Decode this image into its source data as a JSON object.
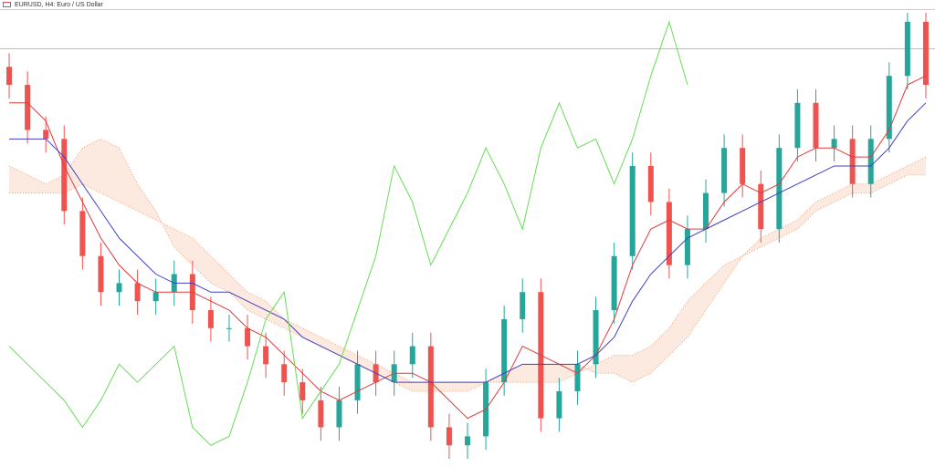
{
  "window": {
    "title": "EURUSD, H4: Euro / US Dollar"
  },
  "chart_data": {
    "type": "candlestick",
    "ylim": [
      0,
      100
    ],
    "open": [
      88,
      84,
      74,
      72,
      56,
      46,
      38,
      40,
      36,
      38,
      42,
      34,
      30,
      30,
      26,
      22,
      18,
      14,
      8,
      14,
      22,
      18,
      22,
      26,
      8,
      4,
      6,
      18,
      32,
      38,
      10,
      16,
      22,
      34,
      46,
      66,
      58,
      44,
      52,
      60,
      70,
      62,
      52,
      70,
      80,
      70,
      72,
      62,
      72,
      86,
      98
    ],
    "high": [
      91,
      87,
      77,
      75,
      59,
      49,
      43,
      43,
      41,
      45,
      45,
      37,
      33,
      33,
      29,
      25,
      21,
      17,
      17,
      25,
      25,
      25,
      29,
      29,
      11,
      9,
      21,
      35,
      41,
      41,
      19,
      25,
      37,
      49,
      69,
      69,
      61,
      55,
      63,
      73,
      73,
      65,
      73,
      83,
      83,
      75,
      75,
      75,
      89,
      100,
      100
    ],
    "low": [
      81,
      71,
      69,
      53,
      43,
      35,
      35,
      33,
      33,
      35,
      31,
      27,
      27,
      23,
      19,
      15,
      11,
      5,
      5,
      11,
      15,
      15,
      19,
      5,
      1,
      1,
      3,
      15,
      29,
      7,
      7,
      13,
      19,
      31,
      43,
      55,
      41,
      41,
      49,
      57,
      59,
      49,
      49,
      67,
      67,
      67,
      59,
      59,
      69,
      83,
      81
    ],
    "close": [
      84,
      74,
      72,
      56,
      46,
      38,
      40,
      36,
      38,
      42,
      34,
      30,
      30,
      26,
      22,
      18,
      14,
      8,
      14,
      22,
      18,
      22,
      26,
      8,
      4,
      6,
      18,
      32,
      38,
      10,
      16,
      22,
      34,
      46,
      66,
      58,
      44,
      52,
      60,
      70,
      62,
      52,
      70,
      80,
      70,
      72,
      62,
      72,
      86,
      98,
      84
    ],
    "up_color": "#26a69a",
    "down_color": "#ef5350",
    "hline": {
      "value": 92,
      "color": "#8fd3cc"
    },
    "cloud": {
      "color": "#f0a070",
      "span_a": [
        66,
        64,
        62,
        64,
        70,
        72,
        70,
        62,
        56,
        48,
        44,
        40,
        38,
        34,
        32,
        30,
        28,
        26,
        24,
        22,
        20,
        18,
        16,
        16,
        16,
        16,
        18,
        20,
        22,
        22,
        22,
        22,
        20,
        20,
        18,
        20,
        24,
        28,
        34,
        40,
        46,
        50,
        52,
        54,
        58,
        60,
        62,
        62,
        64,
        66,
        68
      ],
      "span_b": [
        60,
        60,
        60,
        60,
        62,
        60,
        58,
        56,
        54,
        52,
        50,
        46,
        42,
        38,
        36,
        32,
        30,
        28,
        26,
        24,
        22,
        20,
        18,
        18,
        18,
        18,
        18,
        18,
        18,
        18,
        18,
        20,
        22,
        24,
        24,
        26,
        30,
        36,
        40,
        44,
        46,
        48,
        50,
        52,
        56,
        58,
        60,
        60,
        62,
        64,
        64
      ]
    },
    "lines": [
      {
        "color": "#e03c3c",
        "values": [
          80,
          80,
          76,
          66,
          58,
          50,
          44,
          40,
          38,
          38,
          38,
          36,
          34,
          30,
          28,
          24,
          20,
          16,
          14,
          16,
          18,
          20,
          20,
          18,
          14,
          10,
          12,
          18,
          26,
          24,
          22,
          20,
          24,
          32,
          44,
          52,
          54,
          52,
          52,
          58,
          62,
          60,
          62,
          68,
          70,
          70,
          68,
          68,
          74,
          84,
          86
        ]
      },
      {
        "color": "#4040c0",
        "values": [
          72,
          72,
          72,
          68,
          62,
          56,
          50,
          46,
          42,
          40,
          40,
          38,
          38,
          36,
          34,
          32,
          28,
          26,
          24,
          22,
          20,
          18,
          18,
          18,
          18,
          18,
          18,
          20,
          22,
          22,
          22,
          22,
          24,
          28,
          36,
          42,
          46,
          50,
          52,
          54,
          56,
          58,
          60,
          62,
          64,
          66,
          66,
          66,
          70,
          76,
          80
        ]
      },
      {
        "color": "#66dd55",
        "values": [
          26,
          22,
          18,
          14,
          8,
          14,
          22,
          18,
          22,
          26,
          8,
          4,
          6,
          18,
          32,
          38,
          10,
          16,
          22,
          34,
          46,
          66,
          58,
          44,
          52,
          60,
          70,
          62,
          52,
          70,
          80,
          70,
          72,
          62,
          72,
          86,
          98,
          84,
          null,
          null,
          null,
          null,
          null,
          null,
          null,
          null,
          null,
          null,
          null,
          null,
          null
        ]
      }
    ]
  }
}
